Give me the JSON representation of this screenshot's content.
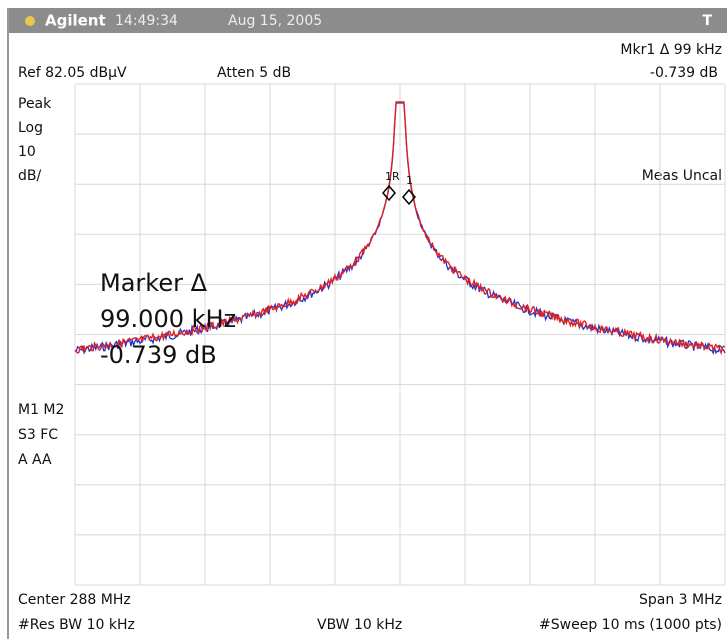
{
  "header": {
    "brand": "Agilent",
    "time": "14:49:34",
    "date": "Aug 15, 2005",
    "mode": "T"
  },
  "status": {
    "marker_readout": "Mkr1 Δ  99 kHz",
    "marker_level": "-0.739 dB",
    "ref": "Ref 82.05 dBμV",
    "atten": "Atten 5 dB",
    "meas_uncal": "Meas Uncal"
  },
  "left_panel": {
    "lines": [
      "Peak",
      "Log",
      "10",
      "dB/"
    ],
    "bottom_lines": [
      "M1 M2",
      "S3 FC",
      "A  AA"
    ]
  },
  "marker_box": {
    "lines": [
      "Marker Δ",
      "99.000 kHz",
      "-0.739 dB"
    ]
  },
  "markers": {
    "ref_label": "1R",
    "delta_label": "1"
  },
  "footer": {
    "center": "Center 288 MHz",
    "span": "Span 3 MHz",
    "res_bw": "#Res BW 10 kHz",
    "vbw": "VBW 10 kHz",
    "sweep": "#Sweep 10 ms (1000 pts)"
  }
}
